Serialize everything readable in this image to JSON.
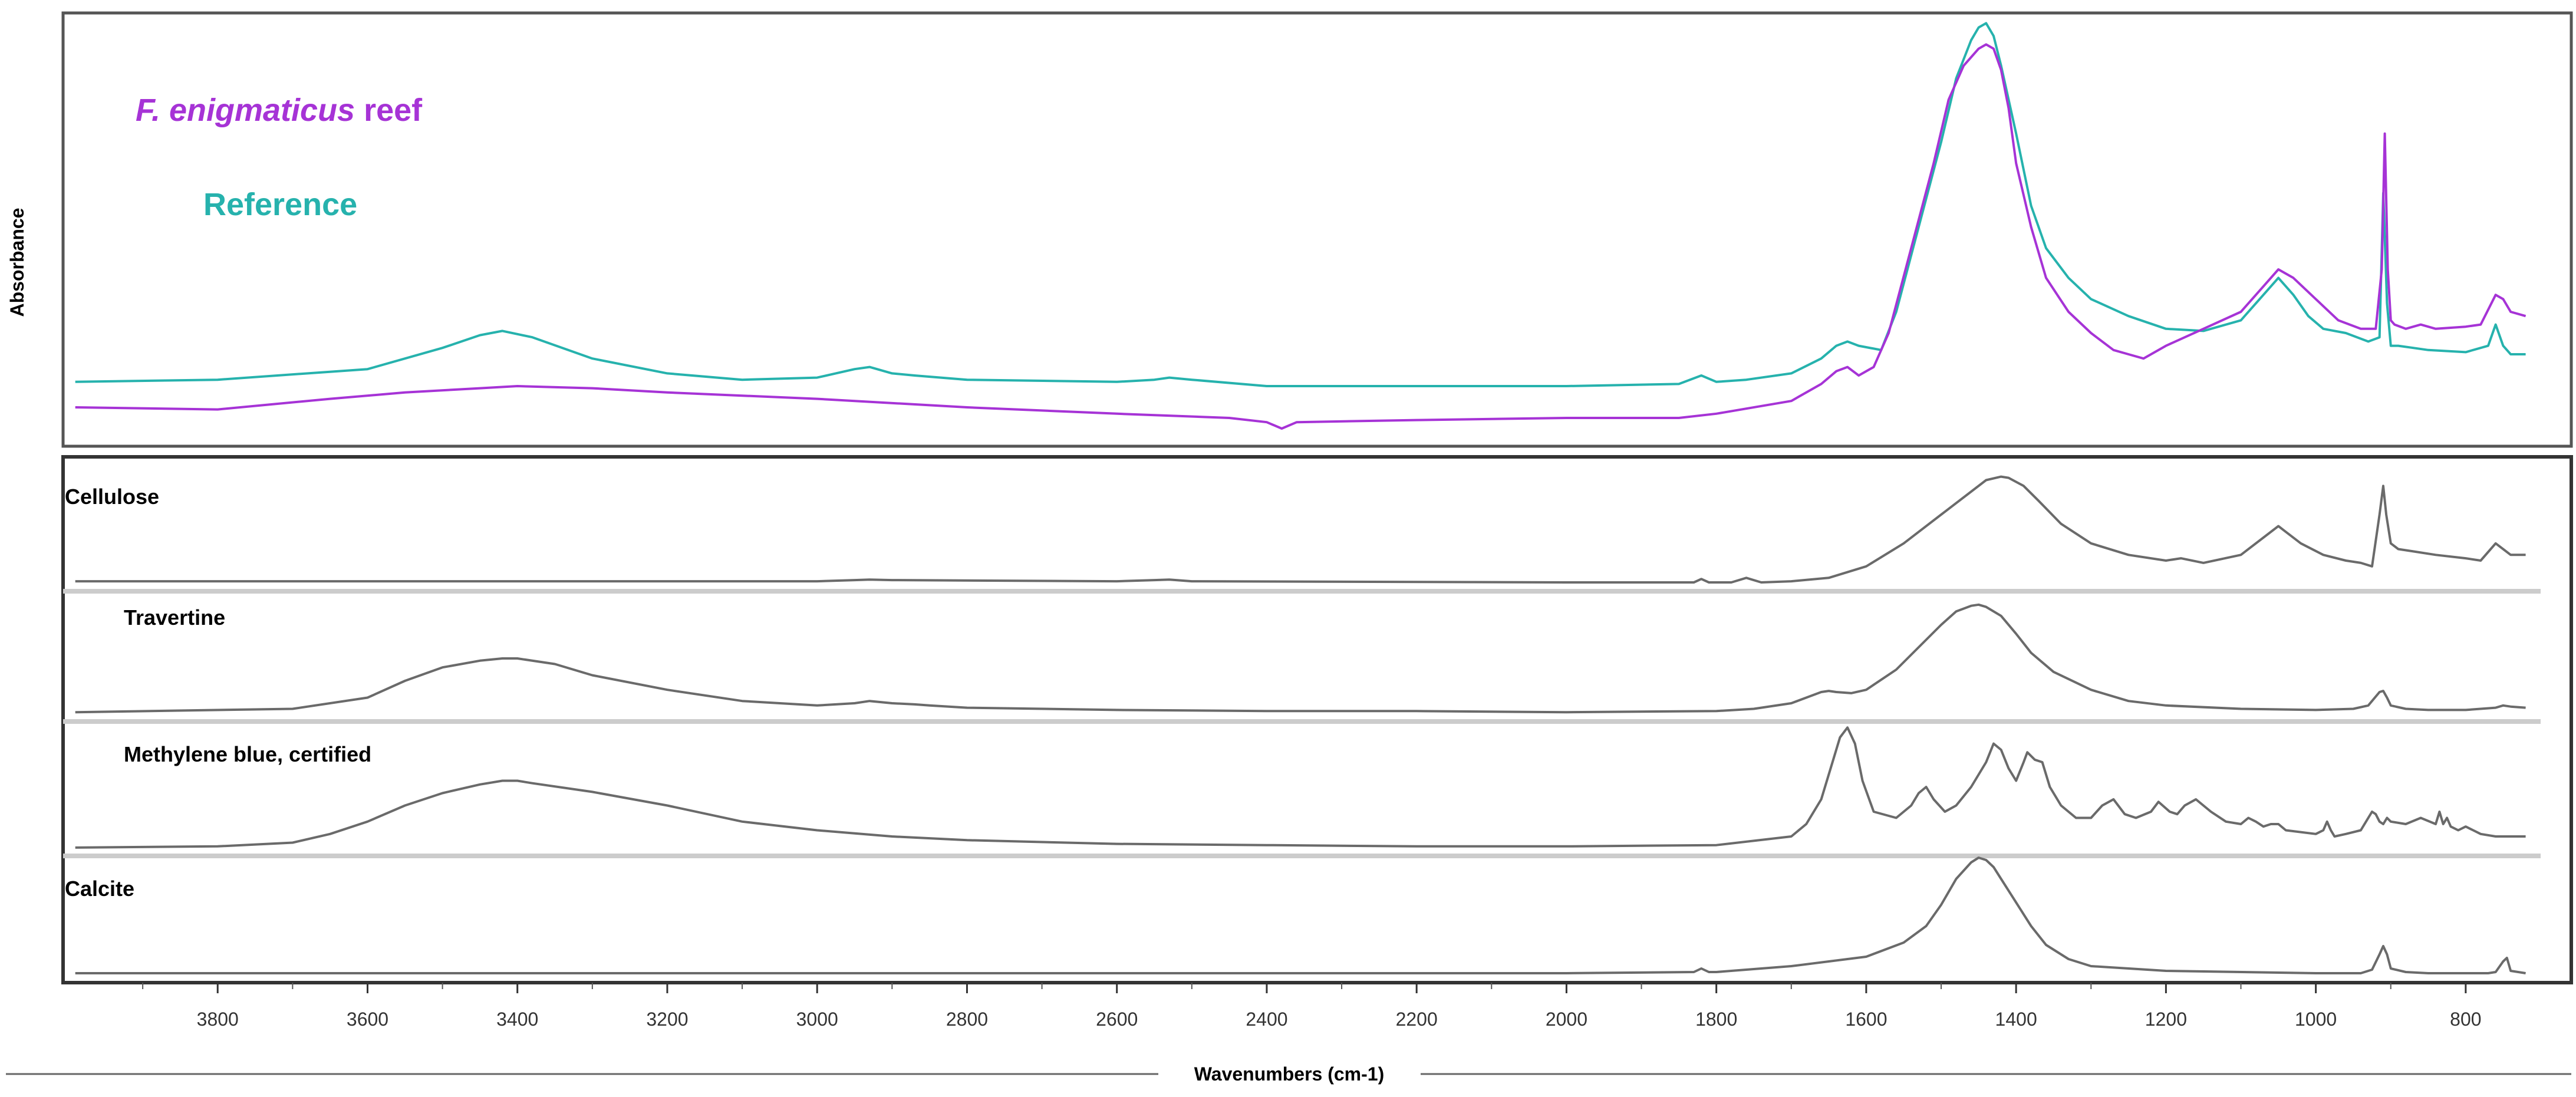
{
  "chart_data": [
    {
      "type": "line",
      "panel": "top",
      "ylabel": "Absorbance",
      "colors": {
        "F. enigmaticus reef": "#a633d6",
        "Reference": "#26b2ad"
      },
      "legend": [
        {
          "italic": "F. enigmaticus",
          "rest": " reef",
          "color": "#a633d6"
        },
        {
          "italic": "",
          "rest": "Reference",
          "color": "#26b2ad"
        }
      ],
      "series": [
        {
          "name": "Reference",
          "color": "#26b2ad",
          "x": [
            3990,
            3800,
            3600,
            3500,
            3450,
            3420,
            3380,
            3300,
            3200,
            3100,
            3000,
            2950,
            2930,
            2900,
            2870,
            2800,
            2600,
            2550,
            2530,
            2500,
            2400,
            2200,
            2000,
            1850,
            1820,
            1800,
            1760,
            1700,
            1660,
            1640,
            1625,
            1610,
            1580,
            1560,
            1530,
            1500,
            1480,
            1460,
            1450,
            1440,
            1430,
            1420,
            1400,
            1380,
            1360,
            1330,
            1300,
            1250,
            1200,
            1150,
            1100,
            1070,
            1050,
            1030,
            1010,
            990,
            960,
            930,
            915,
            910,
            905,
            900,
            890,
            870,
            850,
            800,
            770,
            760,
            750,
            740,
            720
          ],
          "y": [
            0.135,
            0.14,
            0.165,
            0.215,
            0.245,
            0.255,
            0.24,
            0.19,
            0.155,
            0.14,
            0.145,
            0.165,
            0.17,
            0.155,
            0.15,
            0.14,
            0.135,
            0.14,
            0.145,
            0.14,
            0.125,
            0.125,
            0.125,
            0.13,
            0.15,
            0.135,
            0.14,
            0.155,
            0.19,
            0.22,
            0.23,
            0.22,
            0.21,
            0.3,
            0.5,
            0.7,
            0.85,
            0.94,
            0.97,
            0.98,
            0.95,
            0.88,
            0.72,
            0.55,
            0.45,
            0.38,
            0.33,
            0.29,
            0.26,
            0.255,
            0.28,
            0.34,
            0.38,
            0.34,
            0.29,
            0.26,
            0.25,
            0.23,
            0.24,
            0.58,
            0.32,
            0.22,
            0.22,
            0.215,
            0.21,
            0.205,
            0.22,
            0.27,
            0.22,
            0.2,
            0.2
          ]
        },
        {
          "name": "F. enigmaticus reef",
          "color": "#a633d6",
          "x": [
            3990,
            3800,
            3650,
            3550,
            3450,
            3400,
            3300,
            3200,
            3000,
            2800,
            2600,
            2450,
            2400,
            2380,
            2360,
            2200,
            2000,
            1850,
            1800,
            1700,
            1660,
            1640,
            1625,
            1610,
            1590,
            1570,
            1540,
            1510,
            1490,
            1470,
            1460,
            1450,
            1440,
            1430,
            1420,
            1410,
            1400,
            1380,
            1360,
            1330,
            1300,
            1270,
            1250,
            1230,
            1200,
            1150,
            1100,
            1070,
            1050,
            1030,
            1000,
            970,
            940,
            920,
            912,
            908,
            904,
            900,
            895,
            880,
            860,
            840,
            800,
            780,
            760,
            750,
            740,
            720
          ],
          "y": [
            0.075,
            0.07,
            0.095,
            0.11,
            0.12,
            0.125,
            0.12,
            0.11,
            0.095,
            0.075,
            0.06,
            0.05,
            0.04,
            0.025,
            0.04,
            0.045,
            0.05,
            0.05,
            0.06,
            0.09,
            0.13,
            0.16,
            0.17,
            0.15,
            0.17,
            0.25,
            0.45,
            0.65,
            0.8,
            0.88,
            0.9,
            0.92,
            0.93,
            0.92,
            0.87,
            0.78,
            0.65,
            0.5,
            0.38,
            0.3,
            0.25,
            0.21,
            0.2,
            0.19,
            0.22,
            0.26,
            0.3,
            0.36,
            0.4,
            0.38,
            0.33,
            0.28,
            0.26,
            0.26,
            0.4,
            0.72,
            0.4,
            0.28,
            0.27,
            0.26,
            0.27,
            0.26,
            0.265,
            0.27,
            0.34,
            0.33,
            0.3,
            0.29
          ]
        }
      ]
    },
    {
      "type": "line",
      "panel": "bottom",
      "xlabel": "Wavenumbers (cm-1)",
      "xlim": [
        4000,
        700
      ],
      "xticks": [
        3800,
        3600,
        3400,
        3200,
        3000,
        2800,
        2600,
        2400,
        2200,
        2000,
        1800,
        1600,
        1400,
        1200,
        1000,
        800
      ],
      "series": [
        {
          "name": "Cellulose",
          "x": [
            3990,
            3000,
            2950,
            2930,
            2900,
            2600,
            2550,
            2530,
            2500,
            2000,
            1830,
            1820,
            1810,
            1780,
            1760,
            1740,
            1700,
            1650,
            1600,
            1550,
            1500,
            1460,
            1440,
            1420,
            1410,
            1390,
            1370,
            1340,
            1300,
            1250,
            1200,
            1180,
            1150,
            1100,
            1070,
            1050,
            1040,
            1020,
            990,
            960,
            940,
            925,
            915,
            910,
            906,
            900,
            890,
            870,
            840,
            800,
            780,
            760,
            750,
            740,
            720
          ],
          "y": [
            0.02,
            0.02,
            0.03,
            0.035,
            0.03,
            0.02,
            0.03,
            0.035,
            0.02,
            0.01,
            0.01,
            0.04,
            0.01,
            0.01,
            0.05,
            0.01,
            0.02,
            0.05,
            0.15,
            0.35,
            0.6,
            0.8,
            0.9,
            0.93,
            0.92,
            0.85,
            0.72,
            0.52,
            0.35,
            0.25,
            0.2,
            0.22,
            0.18,
            0.25,
            0.4,
            0.5,
            0.45,
            0.35,
            0.25,
            0.2,
            0.18,
            0.15,
            0.6,
            0.85,
            0.6,
            0.35,
            0.3,
            0.28,
            0.25,
            0.22,
            0.2,
            0.35,
            0.3,
            0.25,
            0.25
          ]
        },
        {
          "name": "Travertine",
          "x": [
            3990,
            3700,
            3600,
            3550,
            3500,
            3450,
            3420,
            3400,
            3350,
            3300,
            3200,
            3100,
            3000,
            2950,
            2930,
            2900,
            2870,
            2850,
            2800,
            2600,
            2400,
            2200,
            2000,
            1800,
            1750,
            1700,
            1680,
            1660,
            1650,
            1640,
            1620,
            1600,
            1560,
            1530,
            1500,
            1480,
            1460,
            1450,
            1440,
            1420,
            1400,
            1380,
            1350,
            1300,
            1250,
            1200,
            1100,
            1000,
            950,
            930,
            915,
            910,
            905,
            900,
            880,
            850,
            800,
            760,
            750,
            740,
            720
          ],
          "y": [
            0.02,
            0.05,
            0.15,
            0.3,
            0.42,
            0.48,
            0.5,
            0.5,
            0.45,
            0.35,
            0.22,
            0.12,
            0.08,
            0.1,
            0.12,
            0.1,
            0.09,
            0.08,
            0.06,
            0.04,
            0.03,
            0.03,
            0.02,
            0.03,
            0.05,
            0.1,
            0.15,
            0.2,
            0.21,
            0.2,
            0.19,
            0.22,
            0.4,
            0.6,
            0.8,
            0.92,
            0.97,
            0.98,
            0.96,
            0.88,
            0.72,
            0.55,
            0.38,
            0.22,
            0.12,
            0.08,
            0.05,
            0.04,
            0.05,
            0.08,
            0.2,
            0.21,
            0.15,
            0.08,
            0.05,
            0.04,
            0.04,
            0.06,
            0.08,
            0.07,
            0.06
          ]
        },
        {
          "name": "Methylene blue, certified",
          "x": [
            3990,
            3800,
            3700,
            3650,
            3600,
            3550,
            3500,
            3450,
            3420,
            3400,
            3380,
            3300,
            3200,
            3100,
            3000,
            2900,
            2800,
            2600,
            2400,
            2200,
            2000,
            1800,
            1700,
            1680,
            1660,
            1645,
            1635,
            1625,
            1615,
            1605,
            1590,
            1560,
            1540,
            1530,
            1520,
            1510,
            1495,
            1480,
            1460,
            1440,
            1430,
            1420,
            1410,
            1400,
            1390,
            1385,
            1375,
            1365,
            1355,
            1340,
            1320,
            1300,
            1285,
            1270,
            1255,
            1240,
            1220,
            1210,
            1195,
            1185,
            1175,
            1160,
            1140,
            1120,
            1100,
            1090,
            1080,
            1070,
            1060,
            1050,
            1040,
            1000,
            990,
            985,
            980,
            975,
            960,
            940,
            930,
            925,
            920,
            915,
            910,
            905,
            900,
            880,
            860,
            840,
            835,
            830,
            825,
            820,
            810,
            800,
            790,
            780,
            760,
            740,
            720
          ],
          "y": [
            0.01,
            0.02,
            0.05,
            0.12,
            0.22,
            0.35,
            0.45,
            0.52,
            0.55,
            0.55,
            0.53,
            0.46,
            0.35,
            0.22,
            0.15,
            0.1,
            0.07,
            0.04,
            0.03,
            0.02,
            0.02,
            0.03,
            0.1,
            0.2,
            0.4,
            0.7,
            0.9,
            0.98,
            0.85,
            0.55,
            0.3,
            0.25,
            0.35,
            0.45,
            0.5,
            0.4,
            0.3,
            0.35,
            0.5,
            0.7,
            0.85,
            0.8,
            0.65,
            0.55,
            0.7,
            0.78,
            0.72,
            0.7,
            0.5,
            0.35,
            0.25,
            0.25,
            0.35,
            0.4,
            0.28,
            0.25,
            0.3,
            0.38,
            0.3,
            0.28,
            0.35,
            0.4,
            0.3,
            0.22,
            0.2,
            0.25,
            0.22,
            0.18,
            0.2,
            0.2,
            0.15,
            0.12,
            0.15,
            0.22,
            0.15,
            0.1,
            0.12,
            0.15,
            0.25,
            0.3,
            0.28,
            0.22,
            0.2,
            0.25,
            0.22,
            0.2,
            0.25,
            0.2,
            0.3,
            0.2,
            0.25,
            0.18,
            0.15,
            0.18,
            0.15,
            0.12,
            0.1,
            0.1,
            0.1
          ]
        },
        {
          "name": "Calcite",
          "x": [
            3990,
            2200,
            2000,
            1830,
            1820,
            1810,
            1800,
            1700,
            1600,
            1550,
            1520,
            1500,
            1480,
            1460,
            1450,
            1440,
            1430,
            1420,
            1400,
            1380,
            1360,
            1330,
            1300,
            1200,
            1000,
            940,
            925,
            915,
            910,
            905,
            900,
            880,
            850,
            800,
            770,
            760,
            750,
            745,
            740,
            720
          ],
          "y": [
            0.02,
            0.02,
            0.02,
            0.03,
            0.06,
            0.03,
            0.03,
            0.08,
            0.16,
            0.28,
            0.42,
            0.6,
            0.82,
            0.96,
            1.0,
            0.98,
            0.92,
            0.82,
            0.62,
            0.42,
            0.26,
            0.14,
            0.08,
            0.04,
            0.02,
            0.02,
            0.05,
            0.18,
            0.25,
            0.18,
            0.06,
            0.03,
            0.02,
            0.02,
            0.02,
            0.03,
            0.12,
            0.15,
            0.04,
            0.02
          ]
        }
      ]
    }
  ]
}
